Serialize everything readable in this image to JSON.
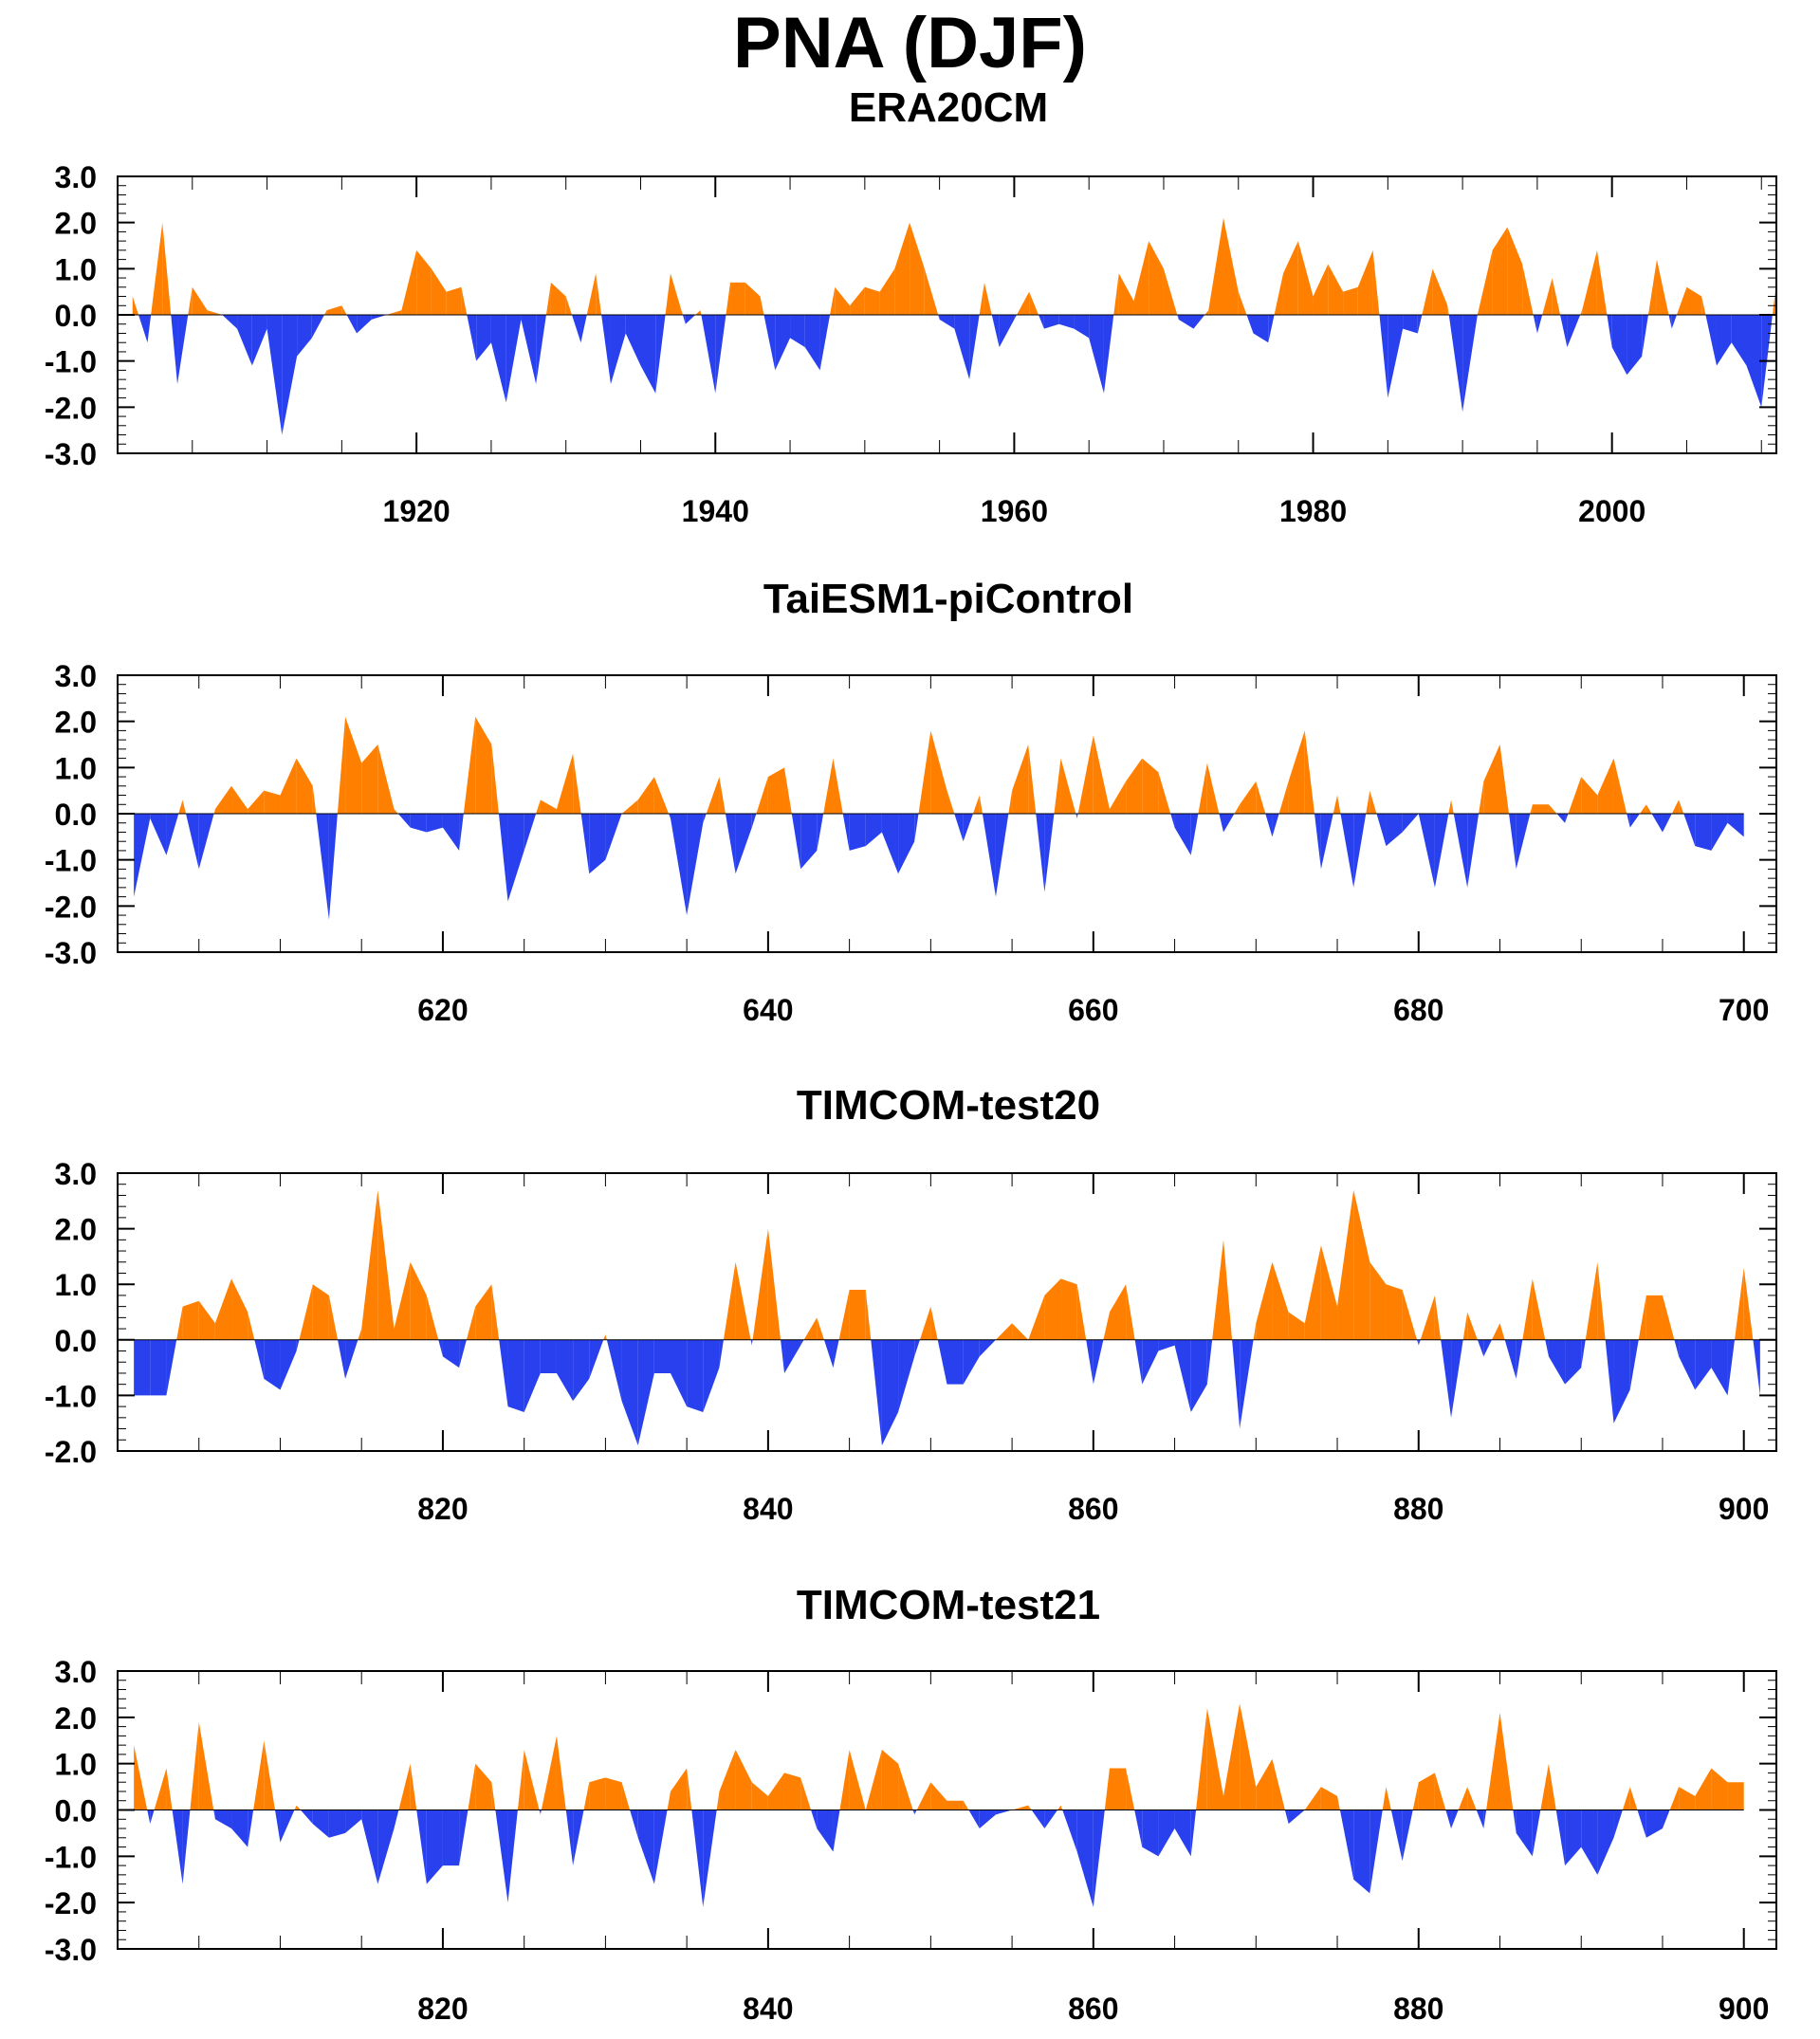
{
  "figure": {
    "title": "PNA (DJF)"
  },
  "colors": {
    "positive": "#ff8000",
    "negative": "#2840ee",
    "axis": "#000000"
  },
  "chart_data": [
    {
      "type": "area",
      "title": "ERA20CM",
      "xlabel": "",
      "ylabel": "",
      "xlim": [
        1900,
        2011
      ],
      "ylim": [
        -3,
        3
      ],
      "yticks": [
        "3.0",
        "2.0",
        "1.0",
        "0.0",
        "-1.0",
        "-2.0",
        "-3.0"
      ],
      "xticks": [
        "1920",
        "1940",
        "1960",
        "1980",
        "2000"
      ],
      "x_start": 1901,
      "values": [
        0.4,
        -0.6,
        2.0,
        -1.5,
        0.6,
        0.1,
        0.0,
        -0.3,
        -1.1,
        -0.3,
        -2.6,
        -0.9,
        -0.5,
        0.1,
        0.2,
        -0.4,
        -0.1,
        0.0,
        0.1,
        1.4,
        1.0,
        0.5,
        0.6,
        -1.0,
        -0.6,
        -1.9,
        -0.1,
        -1.5,
        0.7,
        0.4,
        -0.6,
        0.9,
        -1.5,
        -0.4,
        -1.1,
        -1.7,
        0.9,
        -0.2,
        0.1,
        -1.7,
        0.7,
        0.7,
        0.4,
        -1.2,
        -0.5,
        -0.7,
        -1.2,
        0.6,
        0.2,
        0.6,
        0.5,
        1.0,
        2.0,
        1.0,
        -0.1,
        -0.3,
        -1.4,
        0.7,
        -0.7,
        -0.1,
        0.5,
        -0.3,
        -0.2,
        -0.3,
        -0.5,
        -1.7,
        0.9,
        0.3,
        1.6,
        1.0,
        -0.1,
        -0.3,
        0.1,
        2.1,
        0.5,
        -0.4,
        -0.6,
        0.9,
        1.6,
        0.4,
        1.1,
        0.5,
        0.6,
        1.4,
        -1.8,
        -0.3,
        -0.4,
        1.0,
        0.2,
        -2.1,
        0.0,
        1.4,
        1.9,
        1.1,
        -0.4,
        0.8,
        -0.7,
        0.1,
        1.4,
        -0.7,
        -1.3,
        -0.9,
        1.2,
        -0.3,
        0.6,
        0.4,
        -1.1,
        -0.6,
        -1.1,
        -2.0,
        0.7
      ]
    },
    {
      "type": "area",
      "title": "TaiESM1-piControl",
      "xlabel": "",
      "ylabel": "",
      "xlim": [
        600,
        702
      ],
      "ylim": [
        -3,
        3
      ],
      "yticks": [
        "3.0",
        "2.0",
        "1.0",
        "0.0",
        "-1.0",
        "-2.0",
        "-3.0"
      ],
      "xticks": [
        "620",
        "640",
        "660",
        "680",
        "700"
      ],
      "x_start": 601,
      "values": [
        -1.8,
        -0.1,
        -0.9,
        0.3,
        -1.2,
        0.1,
        0.6,
        0.1,
        0.5,
        0.4,
        1.2,
        0.6,
        -2.3,
        2.1,
        1.1,
        1.5,
        0.1,
        -0.3,
        -0.4,
        -0.3,
        -0.8,
        2.1,
        1.5,
        -1.9,
        -0.8,
        0.3,
        0.1,
        1.3,
        -1.3,
        -1.0,
        0.0,
        0.3,
        0.8,
        -0.1,
        -2.2,
        -0.2,
        0.8,
        -1.3,
        -0.3,
        0.8,
        1.0,
        -1.2,
        -0.8,
        1.2,
        -0.8,
        -0.7,
        -0.4,
        -1.3,
        -0.6,
        1.8,
        0.5,
        -0.6,
        0.4,
        -1.8,
        0.5,
        1.5,
        -1.7,
        1.2,
        -0.1,
        1.7,
        0.1,
        0.7,
        1.2,
        0.9,
        -0.3,
        -0.9,
        1.1,
        -0.4,
        0.2,
        0.7,
        -0.5,
        0.7,
        1.8,
        -1.2,
        0.4,
        -1.6,
        0.5,
        -0.7,
        -0.4,
        0.0,
        -1.6,
        0.3,
        -1.6,
        0.7,
        1.5,
        -1.2,
        0.2,
        0.2,
        -0.2,
        0.8,
        0.4,
        1.2,
        -0.3,
        0.2,
        -0.4,
        0.3,
        -0.7,
        -0.8,
        -0.2,
        -0.5
      ]
    },
    {
      "type": "area",
      "title": "TIMCOM-test20",
      "xlabel": "",
      "ylabel": "",
      "xlim": [
        800,
        902
      ],
      "ylim": [
        -2,
        3
      ],
      "yticks": [
        "3.0",
        "2.0",
        "1.0",
        "0.0",
        "-1.0",
        "-2.0"
      ],
      "xticks": [
        "820",
        "840",
        "860",
        "880",
        "900"
      ],
      "x_start": 801,
      "values": [
        -1.0,
        -1.0,
        -1.0,
        0.6,
        0.7,
        0.3,
        1.1,
        0.5,
        -0.7,
        -0.9,
        -0.2,
        1.0,
        0.8,
        -0.7,
        0.2,
        2.7,
        0.2,
        1.4,
        0.8,
        -0.3,
        -0.5,
        0.6,
        1.0,
        -1.2,
        -1.3,
        -0.6,
        -0.6,
        -1.1,
        -0.7,
        0.1,
        -1.1,
        -1.9,
        -0.6,
        -0.6,
        -1.2,
        -1.3,
        -0.5,
        1.4,
        -0.1,
        2.0,
        -0.6,
        -0.1,
        0.4,
        -0.5,
        0.9,
        0.9,
        -1.9,
        -1.3,
        -0.3,
        0.6,
        -0.8,
        -0.8,
        -0.3,
        0.0,
        0.3,
        0.0,
        0.8,
        1.1,
        1.0,
        -0.8,
        0.5,
        1.0,
        -0.8,
        -0.2,
        -0.1,
        -1.3,
        -0.8,
        1.8,
        -1.6,
        0.3,
        1.4,
        0.5,
        0.3,
        1.7,
        0.6,
        2.7,
        1.4,
        1.0,
        0.9,
        -0.1,
        0.8,
        -1.4,
        0.5,
        -0.3,
        0.3,
        -0.7,
        1.1,
        -0.3,
        -0.8,
        -0.5,
        1.4,
        -1.5,
        -0.9,
        0.8,
        0.8,
        -0.3,
        -0.9,
        -0.5,
        -1.0,
        1.3,
        -1.0
      ]
    },
    {
      "type": "area",
      "title": "TIMCOM-test21",
      "xlabel": "",
      "ylabel": "",
      "xlim": [
        800,
        902
      ],
      "ylim": [
        -3,
        3
      ],
      "yticks": [
        "3.0",
        "2.0",
        "1.0",
        "0.0",
        "-1.0",
        "-2.0",
        "-3.0"
      ],
      "xticks": [
        "820",
        "840",
        "860",
        "880",
        "900"
      ],
      "x_start": 801,
      "values": [
        1.4,
        -0.3,
        0.9,
        -1.6,
        1.9,
        -0.2,
        -0.4,
        -0.8,
        1.5,
        -0.7,
        0.1,
        -0.3,
        -0.6,
        -0.5,
        -0.2,
        -1.6,
        -0.4,
        1.0,
        -1.6,
        -1.2,
        -1.2,
        1.0,
        0.6,
        -2.0,
        1.3,
        -0.1,
        1.6,
        -1.2,
        0.6,
        0.7,
        0.6,
        -0.6,
        -1.6,
        0.4,
        0.9,
        -2.1,
        0.4,
        1.3,
        0.6,
        0.3,
        0.8,
        0.7,
        -0.4,
        -0.9,
        1.3,
        0.0,
        1.3,
        1.0,
        -0.1,
        0.6,
        0.2,
        0.2,
        -0.4,
        -0.1,
        0.0,
        0.1,
        -0.4,
        0.1,
        -0.9,
        -2.1,
        0.9,
        0.9,
        -0.8,
        -1.0,
        -0.4,
        -1.0,
        2.2,
        0.3,
        2.3,
        0.5,
        1.1,
        -0.3,
        0.0,
        0.5,
        0.3,
        -1.5,
        -1.8,
        0.5,
        -1.1,
        0.6,
        0.8,
        -0.4,
        0.5,
        -0.4,
        2.1,
        -0.5,
        -1.0,
        1.0,
        -1.2,
        -0.8,
        -1.4,
        -0.6,
        0.5,
        -0.6,
        -0.4,
        0.5,
        0.3,
        0.9,
        0.6,
        0.6
      ]
    }
  ]
}
